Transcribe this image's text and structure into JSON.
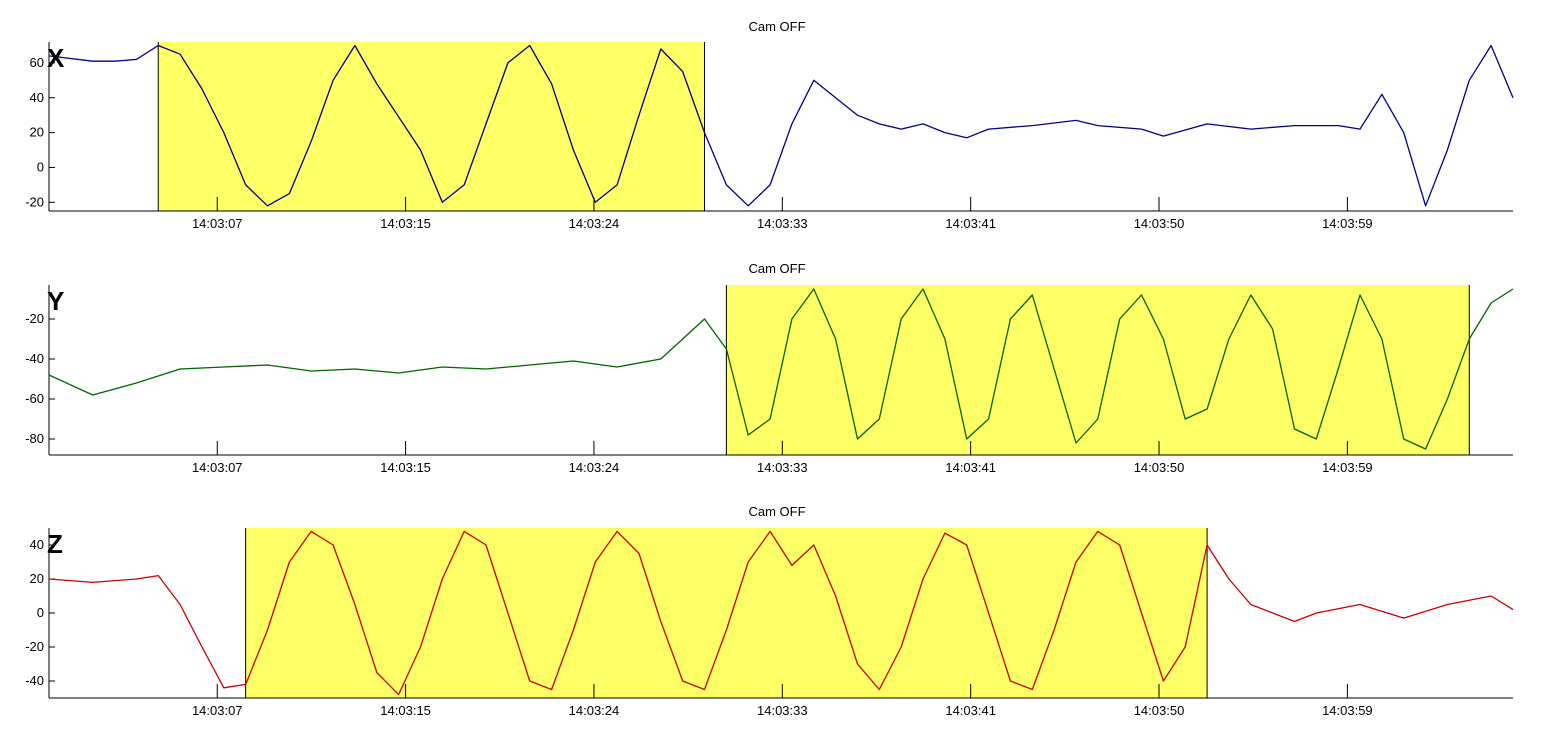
{
  "chart_data": [
    {
      "type": "line",
      "title": "Cam OFF",
      "axis_letter": "X",
      "series": [
        {
          "color": "#00008b"
        }
      ],
      "highlight_color": "#ffff66",
      "x_tick_labels": [
        "14:03:07",
        "14:03:15",
        "14:03:24",
        "14:03:33",
        "14:03:41",
        "14:03:50",
        "14:03:59"
      ],
      "y_ticks": [
        -20,
        0,
        20,
        40,
        60
      ],
      "ylim": [
        -25,
        72
      ],
      "xlim": [
        "14:03:00",
        "14:04:07"
      ],
      "highlight": [
        "14:03:05",
        "14:03:30"
      ],
      "grid": false,
      "points": [
        [
          "14:03:00",
          64
        ],
        [
          "14:03:02",
          61
        ],
        [
          "14:03:03",
          61
        ],
        [
          "14:03:04",
          62
        ],
        [
          "14:03:05",
          70
        ],
        [
          "14:03:06",
          65
        ],
        [
          "14:03:07",
          45
        ],
        [
          "14:03:08",
          20
        ],
        [
          "14:03:09",
          -10
        ],
        [
          "14:03:10",
          -22
        ],
        [
          "14:03:11",
          -15
        ],
        [
          "14:03:12",
          15
        ],
        [
          "14:03:13",
          50
        ],
        [
          "14:03:14",
          70
        ],
        [
          "14:03:15",
          48
        ],
        [
          "14:03:17",
          10
        ],
        [
          "14:03:18",
          -20
        ],
        [
          "14:03:19",
          -10
        ],
        [
          "14:03:20",
          25
        ],
        [
          "14:03:21",
          60
        ],
        [
          "14:03:22",
          70
        ],
        [
          "14:03:23",
          48
        ],
        [
          "14:03:24",
          10
        ],
        [
          "14:03:25",
          -20
        ],
        [
          "14:03:26",
          -10
        ],
        [
          "14:03:27",
          30
        ],
        [
          "14:03:28",
          68
        ],
        [
          "14:03:29",
          55
        ],
        [
          "14:03:30",
          20
        ],
        [
          "14:03:31",
          -10
        ],
        [
          "14:03:32",
          -22
        ],
        [
          "14:03:33",
          -10
        ],
        [
          "14:03:34",
          25
        ],
        [
          "14:03:35",
          50
        ],
        [
          "14:03:36",
          40
        ],
        [
          "14:03:37",
          30
        ],
        [
          "14:03:38",
          25
        ],
        [
          "14:03:39",
          22
        ],
        [
          "14:03:40",
          25
        ],
        [
          "14:03:41",
          20
        ],
        [
          "14:03:42",
          17
        ],
        [
          "14:03:43",
          22
        ],
        [
          "14:03:45",
          24
        ],
        [
          "14:03:47",
          27
        ],
        [
          "14:03:48",
          24
        ],
        [
          "14:03:50",
          22
        ],
        [
          "14:03:51",
          18
        ],
        [
          "14:03:53",
          25
        ],
        [
          "14:03:55",
          22
        ],
        [
          "14:03:57",
          24
        ],
        [
          "14:03:59",
          24
        ],
        [
          "14:04:00",
          22
        ],
        [
          "14:04:01",
          42
        ],
        [
          "14:04:02",
          20
        ],
        [
          "14:04:03",
          -22
        ],
        [
          "14:04:04",
          10
        ],
        [
          "14:04:05",
          50
        ],
        [
          "14:04:06",
          70
        ],
        [
          "14:04:07",
          40
        ]
      ]
    },
    {
      "type": "line",
      "title": "Cam OFF",
      "axis_letter": "Y",
      "series": [
        {
          "color": "#006400"
        }
      ],
      "highlight_color": "#ffff66",
      "x_tick_labels": [
        "14:03:07",
        "14:03:15",
        "14:03:24",
        "14:03:33",
        "14:03:41",
        "14:03:50",
        "14:03:59"
      ],
      "y_ticks": [
        -80,
        -60,
        -40,
        -20
      ],
      "ylim": [
        -88,
        -3
      ],
      "xlim": [
        "14:03:00",
        "14:04:07"
      ],
      "highlight": [
        "14:03:31",
        "14:04:05"
      ],
      "grid": false,
      "points": [
        [
          "14:03:00",
          -48
        ],
        [
          "14:03:02",
          -58
        ],
        [
          "14:03:04",
          -52
        ],
        [
          "14:03:06",
          -45
        ],
        [
          "14:03:08",
          -44
        ],
        [
          "14:03:10",
          -43
        ],
        [
          "14:03:12",
          -46
        ],
        [
          "14:03:14",
          -45
        ],
        [
          "14:03:16",
          -47
        ],
        [
          "14:03:18",
          -44
        ],
        [
          "14:03:20",
          -45
        ],
        [
          "14:03:22",
          -43
        ],
        [
          "14:03:24",
          -41
        ],
        [
          "14:03:26",
          -44
        ],
        [
          "14:03:28",
          -40
        ],
        [
          "14:03:30",
          -20
        ],
        [
          "14:03:31",
          -35
        ],
        [
          "14:03:32",
          -78
        ],
        [
          "14:03:33",
          -70
        ],
        [
          "14:03:34",
          -20
        ],
        [
          "14:03:35",
          -5
        ],
        [
          "14:03:36",
          -30
        ],
        [
          "14:03:37",
          -80
        ],
        [
          "14:03:38",
          -70
        ],
        [
          "14:03:39",
          -20
        ],
        [
          "14:03:40",
          -5
        ],
        [
          "14:03:41",
          -30
        ],
        [
          "14:03:42",
          -80
        ],
        [
          "14:03:43",
          -70
        ],
        [
          "14:03:44",
          -20
        ],
        [
          "14:03:45",
          -8
        ],
        [
          "14:03:47",
          -82
        ],
        [
          "14:03:48",
          -70
        ],
        [
          "14:03:49",
          -20
        ],
        [
          "14:03:50",
          -8
        ],
        [
          "14:03:51",
          -30
        ],
        [
          "14:03:52",
          -70
        ],
        [
          "14:03:53",
          -65
        ],
        [
          "14:03:54",
          -30
        ],
        [
          "14:03:55",
          -8
        ],
        [
          "14:03:56",
          -25
        ],
        [
          "14:03:57",
          -75
        ],
        [
          "14:03:58",
          -80
        ],
        [
          "14:03:59",
          -45
        ],
        [
          "14:04:00",
          -8
        ],
        [
          "14:04:01",
          -30
        ],
        [
          "14:04:02",
          -80
        ],
        [
          "14:04:03",
          -85
        ],
        [
          "14:04:04",
          -60
        ],
        [
          "14:04:05",
          -30
        ],
        [
          "14:04:06",
          -12
        ],
        [
          "14:04:07",
          -5
        ]
      ]
    },
    {
      "type": "line",
      "title": "Cam OFF",
      "axis_letter": "Z",
      "series": [
        {
          "color": "#cc0000"
        }
      ],
      "highlight_color": "#ffff66",
      "x_tick_labels": [
        "14:03:07",
        "14:03:15",
        "14:03:24",
        "14:03:33",
        "14:03:41",
        "14:03:50",
        "14:03:59"
      ],
      "y_ticks": [
        -40,
        -20,
        0,
        20,
        40
      ],
      "ylim": [
        -50,
        50
      ],
      "xlim": [
        "14:03:00",
        "14:04:07"
      ],
      "highlight": [
        "14:03:09",
        "14:03:53"
      ],
      "grid": false,
      "points": [
        [
          "14:03:00",
          20
        ],
        [
          "14:03:02",
          18
        ],
        [
          "14:03:04",
          20
        ],
        [
          "14:03:05",
          22
        ],
        [
          "14:03:06",
          5
        ],
        [
          "14:03:07",
          -20
        ],
        [
          "14:03:08",
          -44
        ],
        [
          "14:03:09",
          -42
        ],
        [
          "14:03:10",
          -10
        ],
        [
          "14:03:11",
          30
        ],
        [
          "14:03:12",
          48
        ],
        [
          "14:03:13",
          40
        ],
        [
          "14:03:14",
          5
        ],
        [
          "14:03:15",
          -35
        ],
        [
          "14:03:16",
          -48
        ],
        [
          "14:03:17",
          -20
        ],
        [
          "14:03:18",
          20
        ],
        [
          "14:03:19",
          48
        ],
        [
          "14:03:20",
          40
        ],
        [
          "14:03:21",
          0
        ],
        [
          "14:03:22",
          -40
        ],
        [
          "14:03:23",
          -45
        ],
        [
          "14:03:24",
          -10
        ],
        [
          "14:03:25",
          30
        ],
        [
          "14:03:26",
          48
        ],
        [
          "14:03:27",
          35
        ],
        [
          "14:03:28",
          -5
        ],
        [
          "14:03:29",
          -40
        ],
        [
          "14:03:30",
          -45
        ],
        [
          "14:03:31",
          -10
        ],
        [
          "14:03:32",
          30
        ],
        [
          "14:03:33",
          48
        ],
        [
          "14:03:34",
          28
        ],
        [
          "14:03:35",
          40
        ],
        [
          "14:03:36",
          10
        ],
        [
          "14:03:37",
          -30
        ],
        [
          "14:03:38",
          -45
        ],
        [
          "14:03:39",
          -20
        ],
        [
          "14:03:40",
          20
        ],
        [
          "14:03:41",
          47
        ],
        [
          "14:03:42",
          40
        ],
        [
          "14:03:43",
          0
        ],
        [
          "14:03:44",
          -40
        ],
        [
          "14:03:45",
          -45
        ],
        [
          "14:03:46",
          -10
        ],
        [
          "14:03:47",
          30
        ],
        [
          "14:03:48",
          48
        ],
        [
          "14:03:49",
          40
        ],
        [
          "14:03:50",
          0
        ],
        [
          "14:03:51",
          -40
        ],
        [
          "14:03:52",
          -20
        ],
        [
          "14:03:53",
          40
        ],
        [
          "14:03:54",
          20
        ],
        [
          "14:03:55",
          5
        ],
        [
          "14:03:57",
          -5
        ],
        [
          "14:03:58",
          0
        ],
        [
          "14:04:00",
          5
        ],
        [
          "14:04:02",
          -3
        ],
        [
          "14:04:04",
          5
        ],
        [
          "14:04:06",
          10
        ],
        [
          "14:04:07",
          2
        ]
      ]
    }
  ]
}
